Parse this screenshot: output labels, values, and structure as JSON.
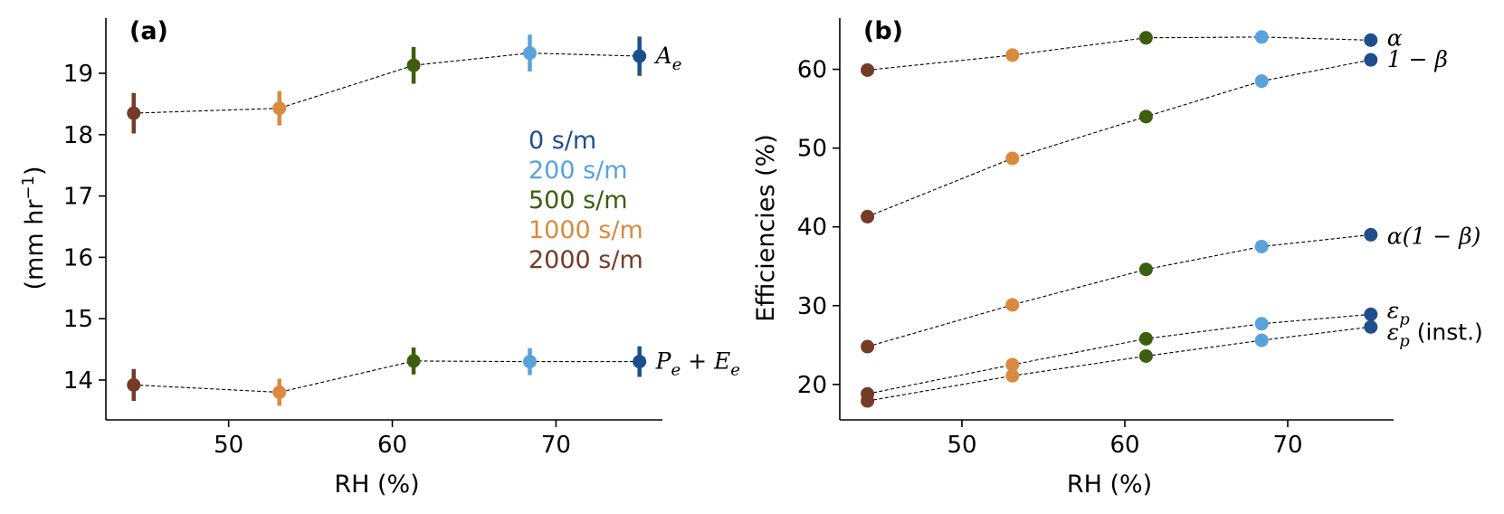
{
  "colors": {
    "0 s/m": "#1f4e8c",
    "200 s/m": "#5aa2dc",
    "500 s/m": "#3d5e0e",
    "1000 s/m": "#d98a3e",
    "2000 s/m": "#743c28"
  },
  "chart_data": [
    {
      "type": "scatter",
      "panel": "(a)",
      "xlabel": "RH (%)",
      "ylabel_parts": [
        "(mm hr",
        "−1",
        ")"
      ],
      "xlim": [
        42.5,
        76.5
      ],
      "ylim": [
        13.35,
        19.9
      ],
      "xticks": [
        50,
        60,
        70
      ],
      "yticks": [
        14,
        15,
        16,
        17,
        18,
        19
      ],
      "legend": {
        "placement": "center",
        "entries": [
          "0 s/m",
          "200 s/m",
          "500 s/m",
          "1000 s/m",
          "2000 s/m"
        ]
      },
      "series": [
        {
          "name": "A_e",
          "label_main": "A",
          "label_sub": "e",
          "x": [
            44.2,
            53.1,
            61.3,
            68.4,
            75.1
          ],
          "y": [
            18.35,
            18.43,
            19.13,
            19.33,
            19.28
          ],
          "err": [
            0.33,
            0.28,
            0.3,
            0.3,
            0.32
          ],
          "groups": [
            "2000 s/m",
            "1000 s/m",
            "500 s/m",
            "200 s/m",
            "0 s/m"
          ]
        },
        {
          "name": "P_e + E_e",
          "label_main": "P",
          "label_sub": "e",
          "label_mid": " + E",
          "label_sub2": "e",
          "x": [
            44.2,
            53.1,
            61.3,
            68.4,
            75.1
          ],
          "y": [
            13.92,
            13.8,
            14.31,
            14.3,
            14.3
          ],
          "err": [
            0.26,
            0.22,
            0.22,
            0.22,
            0.25
          ],
          "groups": [
            "2000 s/m",
            "1000 s/m",
            "500 s/m",
            "200 s/m",
            "0 s/m"
          ]
        }
      ]
    },
    {
      "type": "line",
      "panel": "(b)",
      "xlabel": "RH (%)",
      "ylabel": "Efficiencies (%)",
      "xlim": [
        42.5,
        76.5
      ],
      "ylim": [
        15.5,
        66.5
      ],
      "xticks": [
        50,
        60,
        70
      ],
      "yticks": [
        20,
        30,
        40,
        50,
        60
      ],
      "series": [
        {
          "name": "α",
          "label_main": "α",
          "x": [
            44.2,
            53.1,
            61.3,
            68.4,
            75.1
          ],
          "y": [
            59.9,
            61.8,
            64.0,
            64.1,
            63.7
          ],
          "groups": [
            "2000 s/m",
            "1000 s/m",
            "500 s/m",
            "200 s/m",
            "0 s/m"
          ]
        },
        {
          "name": "1 − β",
          "label_main": "1 − β",
          "x": [
            44.2,
            53.1,
            61.3,
            68.4,
            75.1
          ],
          "y": [
            41.3,
            48.7,
            54.0,
            58.5,
            61.2
          ],
          "groups": [
            "2000 s/m",
            "1000 s/m",
            "500 s/m",
            "200 s/m",
            "0 s/m"
          ]
        },
        {
          "name": "α(1 − β)",
          "label_main": "α(1 − β)",
          "x": [
            44.2,
            53.1,
            61.3,
            68.4,
            75.1
          ],
          "y": [
            24.8,
            30.1,
            34.6,
            37.5,
            39.0
          ],
          "groups": [
            "2000 s/m",
            "1000 s/m",
            "500 s/m",
            "200 s/m",
            "0 s/m"
          ]
        },
        {
          "name": "ε_p",
          "label_main": "ε",
          "label_sub": "p",
          "x": [
            44.2,
            53.1,
            61.3,
            68.4,
            75.1
          ],
          "y": [
            18.8,
            22.5,
            25.8,
            27.7,
            28.9
          ],
          "groups": [
            "2000 s/m",
            "1000 s/m",
            "500 s/m",
            "200 s/m",
            "0 s/m"
          ]
        },
        {
          "name": "ε_p (inst.)",
          "label_main": "ε",
          "label_sub": "p",
          "label_suffix": " (inst.)",
          "x": [
            44.2,
            53.1,
            61.3,
            68.4,
            75.1
          ],
          "y": [
            17.9,
            21.1,
            23.6,
            25.6,
            27.3
          ],
          "groups": [
            "2000 s/m",
            "1000 s/m",
            "500 s/m",
            "200 s/m",
            "0 s/m"
          ]
        }
      ]
    }
  ]
}
